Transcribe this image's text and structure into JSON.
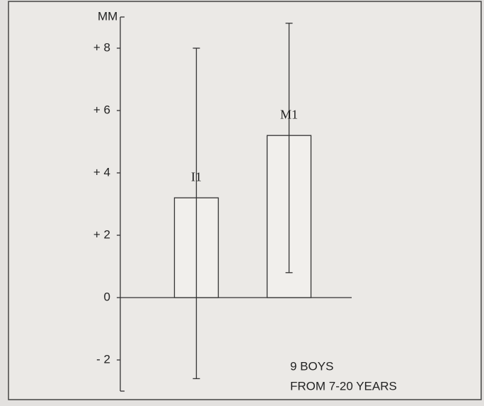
{
  "chart_data": {
    "type": "bar",
    "y_label": "MM",
    "categories": [
      "I1",
      "M1"
    ],
    "values": [
      3.2,
      5.2
    ],
    "error_low": [
      -2.6,
      0.8
    ],
    "error_high": [
      8.0,
      8.8
    ],
    "color": "#f1efec",
    "ylim": [
      -3,
      9
    ],
    "yticks": [
      {
        "value": -2,
        "label": "- 2"
      },
      0,
      {
        "value": 2,
        "label": "+ 2"
      },
      {
        "value": 4,
        "label": "+ 4"
      },
      {
        "value": 6,
        "label": "+ 6"
      },
      {
        "value": 8,
        "label": "+ 8"
      }
    ],
    "annotation": [
      "9 BOYS",
      "FROM  7-20 YEARS"
    ]
  }
}
